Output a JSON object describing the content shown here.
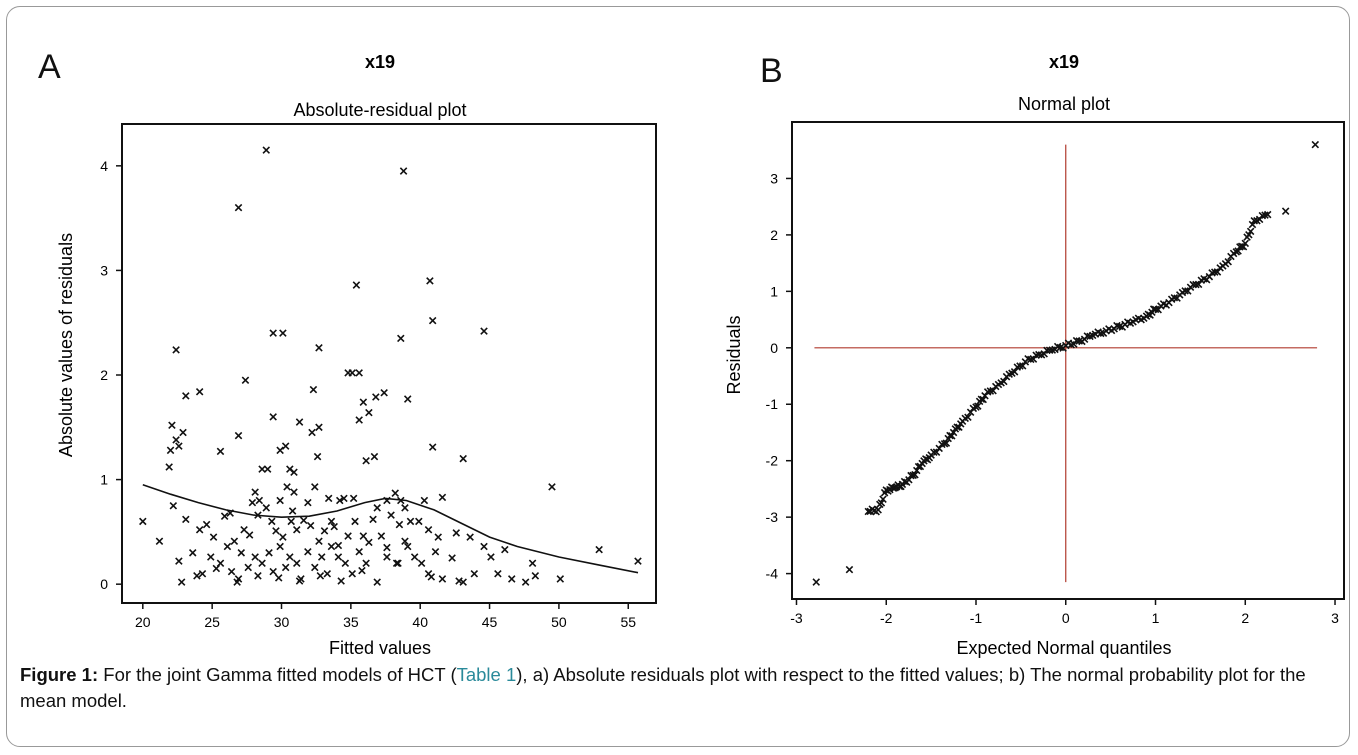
{
  "figure": {
    "panel_a_label": "A",
    "panel_b_label": "B",
    "caption": {
      "label": "Figure 1:",
      "text_before_ref": " For the joint Gamma fitted models of HCT (",
      "ref": "Table 1",
      "text_after_ref": "), a) Absolute residuals plot with respect to the fitted values; b) The normal probability plot for the mean model."
    }
  },
  "chart_data": [
    {
      "type": "scatter",
      "title": "x19",
      "subtitle": "Absolute-residual plot",
      "xlabel": "Fitted values",
      "ylabel": "Absolute values of residuals",
      "xlim": [
        18.5,
        57
      ],
      "ylim": [
        -0.18,
        4.4
      ],
      "xticks": [
        20,
        25,
        30,
        35,
        40,
        45,
        50,
        55
      ],
      "yticks": [
        0,
        1,
        2,
        3,
        4
      ],
      "marker": "x",
      "points": [
        [
          28.9,
          4.15
        ],
        [
          38.8,
          3.95
        ],
        [
          26.9,
          3.6
        ],
        [
          35.4,
          2.86
        ],
        [
          40.7,
          2.9
        ],
        [
          40.9,
          2.52
        ],
        [
          44.6,
          2.42
        ],
        [
          38.6,
          2.35
        ],
        [
          29.4,
          2.4
        ],
        [
          30.1,
          2.4
        ],
        [
          32.7,
          2.26
        ],
        [
          22.4,
          2.24
        ],
        [
          35.1,
          2.02
        ],
        [
          35.6,
          2.02
        ],
        [
          34.8,
          2.02
        ],
        [
          27.4,
          1.95
        ],
        [
          23.1,
          1.8
        ],
        [
          24.1,
          1.84
        ],
        [
          32.3,
          1.86
        ],
        [
          37.4,
          1.83
        ],
        [
          36.8,
          1.79
        ],
        [
          39.1,
          1.77
        ],
        [
          35.9,
          1.74
        ],
        [
          36.3,
          1.64
        ],
        [
          35.6,
          1.57
        ],
        [
          29.4,
          1.6
        ],
        [
          31.3,
          1.55
        ],
        [
          32.2,
          1.45
        ],
        [
          32.7,
          1.5
        ],
        [
          22.1,
          1.52
        ],
        [
          22.9,
          1.45
        ],
        [
          22.4,
          1.38
        ],
        [
          22.6,
          1.32
        ],
        [
          22.0,
          1.28
        ],
        [
          26.9,
          1.42
        ],
        [
          25.6,
          1.27
        ],
        [
          29.9,
          1.28
        ],
        [
          30.3,
          1.32
        ],
        [
          40.9,
          1.31
        ],
        [
          36.7,
          1.22
        ],
        [
          36.1,
          1.18
        ],
        [
          32.6,
          1.22
        ],
        [
          43.1,
          1.2
        ],
        [
          21.9,
          1.12
        ],
        [
          28.6,
          1.1
        ],
        [
          29.0,
          1.1
        ],
        [
          30.6,
          1.1
        ],
        [
          30.9,
          1.07
        ],
        [
          49.5,
          0.93
        ],
        [
          22.2,
          0.75
        ],
        [
          26.3,
          0.68
        ],
        [
          27.9,
          0.78
        ],
        [
          28.1,
          0.88
        ],
        [
          28.4,
          0.8
        ],
        [
          28.9,
          0.73
        ],
        [
          29.9,
          0.8
        ],
        [
          30.4,
          0.93
        ],
        [
          30.9,
          0.88
        ],
        [
          31.9,
          0.78
        ],
        [
          32.4,
          0.93
        ],
        [
          33.4,
          0.82
        ],
        [
          34.2,
          0.8
        ],
        [
          34.5,
          0.82
        ],
        [
          35.2,
          0.82
        ],
        [
          36.9,
          0.73
        ],
        [
          37.6,
          0.8
        ],
        [
          38.2,
          0.87
        ],
        [
          38.6,
          0.8
        ],
        [
          38.9,
          0.73
        ],
        [
          39.3,
          0.6
        ],
        [
          40.3,
          0.8
        ],
        [
          41.6,
          0.83
        ],
        [
          20.0,
          0.6
        ],
        [
          21.2,
          0.41
        ],
        [
          23.1,
          0.62
        ],
        [
          24.1,
          0.52
        ],
        [
          24.6,
          0.57
        ],
        [
          25.1,
          0.45
        ],
        [
          25.9,
          0.65
        ],
        [
          26.6,
          0.41
        ],
        [
          27.3,
          0.52
        ],
        [
          27.7,
          0.47
        ],
        [
          28.3,
          0.66
        ],
        [
          29.3,
          0.6
        ],
        [
          29.6,
          0.51
        ],
        [
          30.1,
          0.45
        ],
        [
          30.7,
          0.6
        ],
        [
          31.1,
          0.52
        ],
        [
          31.6,
          0.61
        ],
        [
          32.1,
          0.56
        ],
        [
          32.7,
          0.41
        ],
        [
          33.1,
          0.51
        ],
        [
          33.6,
          0.6
        ],
        [
          34.1,
          0.37
        ],
        [
          34.8,
          0.46
        ],
        [
          35.3,
          0.6
        ],
        [
          35.9,
          0.46
        ],
        [
          36.6,
          0.62
        ],
        [
          37.2,
          0.46
        ],
        [
          37.9,
          0.66
        ],
        [
          38.5,
          0.57
        ],
        [
          38.9,
          0.41
        ],
        [
          39.9,
          0.6
        ],
        [
          40.6,
          0.52
        ],
        [
          41.3,
          0.45
        ],
        [
          42.6,
          0.49
        ],
        [
          43.6,
          0.45
        ],
        [
          22.6,
          0.22
        ],
        [
          23.6,
          0.3
        ],
        [
          24.3,
          0.1
        ],
        [
          24.9,
          0.26
        ],
        [
          25.6,
          0.2
        ],
        [
          26.1,
          0.36
        ],
        [
          26.4,
          0.12
        ],
        [
          26.9,
          0.05
        ],
        [
          27.1,
          0.3
        ],
        [
          27.6,
          0.16
        ],
        [
          28.1,
          0.26
        ],
        [
          28.6,
          0.2
        ],
        [
          29.1,
          0.3
        ],
        [
          29.4,
          0.12
        ],
        [
          29.9,
          0.36
        ],
        [
          30.3,
          0.16
        ],
        [
          30.6,
          0.26
        ],
        [
          31.1,
          0.2
        ],
        [
          31.4,
          0.05
        ],
        [
          31.9,
          0.31
        ],
        [
          32.4,
          0.16
        ],
        [
          32.9,
          0.26
        ],
        [
          33.3,
          0.1
        ],
        [
          33.6,
          0.36
        ],
        [
          34.1,
          0.26
        ],
        [
          34.6,
          0.2
        ],
        [
          35.1,
          0.1
        ],
        [
          35.6,
          0.31
        ],
        [
          36.1,
          0.2
        ],
        [
          36.9,
          0.02
        ],
        [
          37.6,
          0.26
        ],
        [
          38.4,
          0.2
        ],
        [
          39.1,
          0.36
        ],
        [
          39.6,
          0.26
        ],
        [
          40.1,
          0.2
        ],
        [
          40.6,
          0.1
        ],
        [
          41.1,
          0.31
        ],
        [
          41.6,
          0.05
        ],
        [
          42.3,
          0.25
        ],
        [
          43.1,
          0.02
        ],
        [
          43.9,
          0.1
        ],
        [
          44.6,
          0.36
        ],
        [
          45.1,
          0.26
        ],
        [
          45.6,
          0.1
        ],
        [
          46.1,
          0.33
        ],
        [
          46.6,
          0.05
        ],
        [
          47.6,
          0.02
        ],
        [
          48.1,
          0.2
        ],
        [
          48.3,
          0.08
        ],
        [
          50.1,
          0.05
        ],
        [
          52.9,
          0.33
        ],
        [
          55.7,
          0.22
        ],
        [
          22.8,
          0.02
        ],
        [
          23.9,
          0.08
        ],
        [
          25.3,
          0.15
        ],
        [
          26.8,
          0.02
        ],
        [
          28.3,
          0.08
        ],
        [
          29.8,
          0.06
        ],
        [
          31.3,
          0.03
        ],
        [
          32.8,
          0.08
        ],
        [
          34.3,
          0.03
        ],
        [
          35.8,
          0.13
        ],
        [
          38.3,
          0.2
        ],
        [
          40.8,
          0.07
        ],
        [
          42.8,
          0.03
        ],
        [
          30.8,
          0.7
        ],
        [
          33.8,
          0.55
        ],
        [
          36.3,
          0.4
        ],
        [
          37.6,
          0.35
        ]
      ],
      "smooth_line": [
        [
          20,
          0.95
        ],
        [
          22,
          0.86
        ],
        [
          24,
          0.78
        ],
        [
          26,
          0.71
        ],
        [
          28,
          0.66
        ],
        [
          30,
          0.64
        ],
        [
          32,
          0.65
        ],
        [
          34,
          0.7
        ],
        [
          36,
          0.78
        ],
        [
          37.5,
          0.82
        ],
        [
          39,
          0.8
        ],
        [
          41,
          0.71
        ],
        [
          43,
          0.58
        ],
        [
          45,
          0.45
        ],
        [
          47,
          0.36
        ],
        [
          50,
          0.26
        ],
        [
          53,
          0.18
        ],
        [
          55.7,
          0.11
        ]
      ]
    },
    {
      "type": "scatter",
      "title": "x19",
      "subtitle": "Normal plot",
      "xlabel": "Expected Normal quantiles",
      "ylabel": "Residuals",
      "xlim": [
        -3.05,
        3.1
      ],
      "ylim": [
        -4.45,
        4.0
      ],
      "xticks": [
        -3,
        -2,
        -1,
        0,
        1,
        2,
        3
      ],
      "yticks": [
        -4,
        -3,
        -2,
        -1,
        0,
        1,
        2,
        3
      ],
      "marker": "x",
      "reference_lines": {
        "horizontal_y": 0,
        "vertical_x": 0,
        "x_extent": [
          -2.8,
          2.8
        ],
        "y_extent": [
          -4.15,
          3.6
        ],
        "color": "#b03a2e"
      },
      "points_sampled_from": [
        [
          -2.78,
          -4.15
        ],
        [
          -2.41,
          -3.93
        ],
        [
          -2.2,
          -2.9
        ],
        [
          -2.09,
          -2.87
        ],
        [
          -2.0,
          -2.52
        ],
        [
          -1.9,
          -2.48
        ],
        [
          -1.82,
          -2.42
        ],
        [
          -1.7,
          -2.26
        ],
        [
          -1.6,
          -2.05
        ],
        [
          -1.5,
          -1.9
        ],
        [
          -1.35,
          -1.7
        ],
        [
          -1.25,
          -1.5
        ],
        [
          -1.15,
          -1.3
        ],
        [
          -1.0,
          -1.05
        ],
        [
          -0.9,
          -0.85
        ],
        [
          -0.75,
          -0.65
        ],
        [
          -0.6,
          -0.45
        ],
        [
          -0.45,
          -0.25
        ],
        [
          -0.3,
          -0.12
        ],
        [
          -0.15,
          -0.04
        ],
        [
          0.0,
          0.04
        ],
        [
          0.15,
          0.12
        ],
        [
          0.3,
          0.22
        ],
        [
          0.45,
          0.3
        ],
        [
          0.6,
          0.38
        ],
        [
          0.75,
          0.46
        ],
        [
          0.9,
          0.56
        ],
        [
          1.0,
          0.68
        ],
        [
          1.15,
          0.8
        ],
        [
          1.3,
          0.98
        ],
        [
          1.45,
          1.12
        ],
        [
          1.6,
          1.26
        ],
        [
          1.75,
          1.45
        ],
        [
          1.9,
          1.7
        ],
        [
          2.0,
          1.85
        ],
        [
          2.1,
          2.25
        ],
        [
          2.25,
          2.36
        ],
        [
          2.45,
          2.42
        ],
        [
          2.78,
          3.6
        ]
      ],
      "n_points": 200
    }
  ]
}
